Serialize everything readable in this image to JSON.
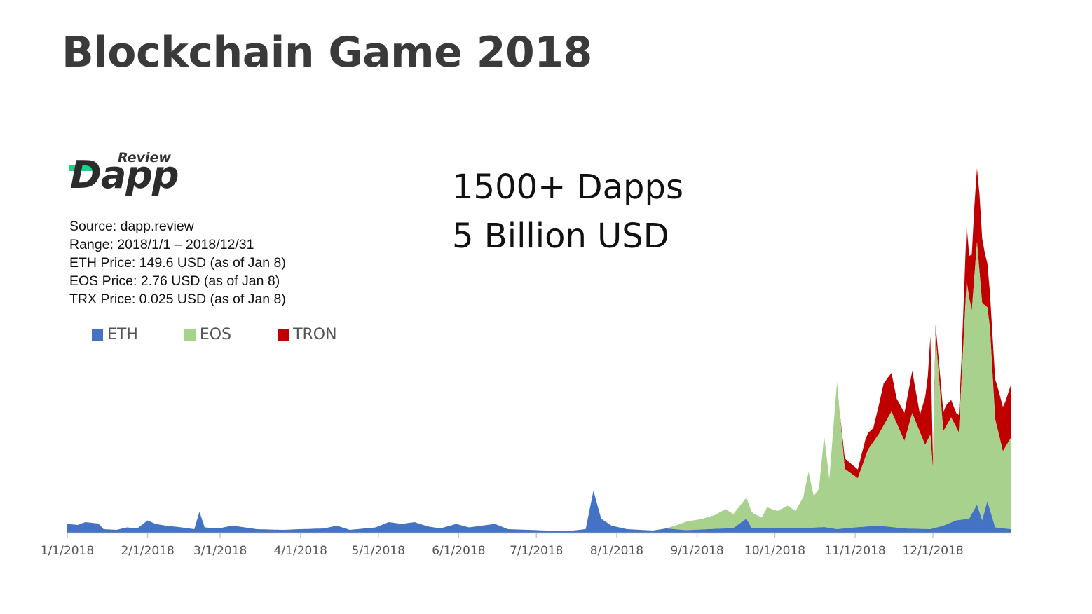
{
  "title": "Blockchain Game 2018",
  "logo": {
    "word": "Dapp",
    "sub": "Review",
    "accent_color": "#1fcf8a"
  },
  "info": [
    "Source: dapp.review",
    "Range: 2018/1/1 – 2018/12/31",
    "ETH Price: 149.6 USD (as of Jan 8)",
    "EOS Price: 2.76 USD (as of Jan 8)",
    "TRX Price: 0.025 USD (as of Jan 8)"
  ],
  "headline": {
    "line1": "1500+ Dapps",
    "line2": "5 Billion USD"
  },
  "legend": [
    {
      "name": "ETH",
      "color": "#4472c4"
    },
    {
      "name": "EOS",
      "color": "#a9d18e"
    },
    {
      "name": "TRON",
      "color": "#c00000"
    }
  ],
  "chart_data": {
    "type": "area",
    "stacked": true,
    "x_ticks": [
      "1/1/2018",
      "2/1/2018",
      "3/1/2018",
      "4/1/2018",
      "5/1/2018",
      "6/1/2018",
      "7/1/2018",
      "8/1/2018",
      "9/1/2018",
      "10/1/2018",
      "11/1/2018",
      "12/1/2018"
    ],
    "x_range": [
      "2018-01-01",
      "2018-12-31"
    ],
    "y_range": [
      0,
      100
    ],
    "y_axis_visible": false,
    "series": [
      {
        "name": "ETH",
        "color": "#4472c4",
        "points": [
          [
            "2018-01-01",
            2.5
          ],
          [
            "2018-01-05",
            2.2
          ],
          [
            "2018-01-08",
            3
          ],
          [
            "2018-01-13",
            2.6
          ],
          [
            "2018-01-15",
            1
          ],
          [
            "2018-01-20",
            0.8
          ],
          [
            "2018-01-24",
            1.5
          ],
          [
            "2018-01-28",
            1.2
          ],
          [
            "2018-02-01",
            3.5
          ],
          [
            "2018-02-04",
            2.5
          ],
          [
            "2018-02-08",
            2
          ],
          [
            "2018-02-13",
            1.6
          ],
          [
            "2018-02-19",
            1
          ],
          [
            "2018-02-21",
            6
          ],
          [
            "2018-02-23",
            1.5
          ],
          [
            "2018-02-28",
            1.2
          ],
          [
            "2018-03-06",
            2
          ],
          [
            "2018-03-15",
            1
          ],
          [
            "2018-03-25",
            0.8
          ],
          [
            "2018-04-01",
            1
          ],
          [
            "2018-04-10",
            1.2
          ],
          [
            "2018-04-15",
            2
          ],
          [
            "2018-04-20",
            0.8
          ],
          [
            "2018-04-30",
            1.5
          ],
          [
            "2018-05-05",
            3
          ],
          [
            "2018-05-10",
            2.5
          ],
          [
            "2018-05-15",
            3
          ],
          [
            "2018-05-20",
            1.8
          ],
          [
            "2018-05-25",
            1.2
          ],
          [
            "2018-05-31",
            2.5
          ],
          [
            "2018-06-05",
            1.5
          ],
          [
            "2018-06-15",
            2.5
          ],
          [
            "2018-06-20",
            1
          ],
          [
            "2018-06-28",
            0.8
          ],
          [
            "2018-07-05",
            0.6
          ],
          [
            "2018-07-15",
            0.6
          ],
          [
            "2018-07-20",
            1
          ],
          [
            "2018-07-23",
            12
          ],
          [
            "2018-07-26",
            4
          ],
          [
            "2018-07-30",
            2
          ],
          [
            "2018-08-05",
            1
          ],
          [
            "2018-08-15",
            0.6
          ],
          [
            "2018-08-20",
            1.2
          ],
          [
            "2018-08-28",
            0.7
          ],
          [
            "2018-09-05",
            1
          ],
          [
            "2018-09-15",
            1.3
          ],
          [
            "2018-09-20",
            4
          ],
          [
            "2018-09-22",
            1.4
          ],
          [
            "2018-09-30",
            1.2
          ],
          [
            "2018-10-10",
            1.2
          ],
          [
            "2018-10-20",
            1.6
          ],
          [
            "2018-10-25",
            1
          ],
          [
            "2018-11-01",
            1.5
          ],
          [
            "2018-11-10",
            2
          ],
          [
            "2018-11-20",
            1.2
          ],
          [
            "2018-11-30",
            1
          ],
          [
            "2018-12-05",
            2
          ],
          [
            "2018-12-10",
            3.5
          ],
          [
            "2018-12-15",
            4
          ],
          [
            "2018-12-18",
            8
          ],
          [
            "2018-12-20",
            3.5
          ],
          [
            "2018-12-22",
            9
          ],
          [
            "2018-12-25",
            1.5
          ],
          [
            "2018-12-31",
            1
          ]
        ]
      },
      {
        "name": "EOS",
        "color": "#a9d18e",
        "points": [
          [
            "2018-08-20",
            0
          ],
          [
            "2018-08-25",
            1.5
          ],
          [
            "2018-08-28",
            2.5
          ],
          [
            "2018-09-03",
            3
          ],
          [
            "2018-09-08",
            4
          ],
          [
            "2018-09-12",
            5.5
          ],
          [
            "2018-09-15",
            4
          ],
          [
            "2018-09-20",
            6
          ],
          [
            "2018-09-23",
            4
          ],
          [
            "2018-09-26",
            3
          ],
          [
            "2018-09-28",
            6
          ],
          [
            "2018-10-02",
            5
          ],
          [
            "2018-10-06",
            6.5
          ],
          [
            "2018-10-09",
            5
          ],
          [
            "2018-10-12",
            9
          ],
          [
            "2018-10-14",
            16
          ],
          [
            "2018-10-16",
            9
          ],
          [
            "2018-10-18",
            11
          ],
          [
            "2018-10-20",
            26
          ],
          [
            "2018-10-22",
            14
          ],
          [
            "2018-10-25",
            42
          ],
          [
            "2018-10-28",
            17
          ],
          [
            "2018-11-02",
            14
          ],
          [
            "2018-11-06",
            22
          ],
          [
            "2018-11-10",
            26
          ],
          [
            "2018-11-15",
            33
          ],
          [
            "2018-11-20",
            25
          ],
          [
            "2018-11-23",
            33
          ],
          [
            "2018-11-28",
            24
          ],
          [
            "2018-11-30",
            27
          ],
          [
            "2018-12-01",
            17
          ],
          [
            "2018-12-02",
            55
          ],
          [
            "2018-12-05",
            27
          ],
          [
            "2018-12-08",
            30
          ],
          [
            "2018-12-11",
            25
          ],
          [
            "2018-12-14",
            68
          ],
          [
            "2018-12-16",
            58
          ],
          [
            "2018-12-18",
            75
          ],
          [
            "2018-12-20",
            62
          ],
          [
            "2018-12-23",
            52
          ],
          [
            "2018-12-25",
            31
          ],
          [
            "2018-12-28",
            22
          ],
          [
            "2018-12-31",
            26
          ]
        ]
      },
      {
        "name": "TRON",
        "color": "#c00000",
        "points": [
          [
            "2018-10-26",
            0
          ],
          [
            "2018-10-28",
            3
          ],
          [
            "2018-11-02",
            2.5
          ],
          [
            "2018-11-05",
            5
          ],
          [
            "2018-11-08",
            4
          ],
          [
            "2018-11-10",
            8
          ],
          [
            "2018-11-12",
            12
          ],
          [
            "2018-11-15",
            11
          ],
          [
            "2018-11-17",
            7
          ],
          [
            "2018-11-20",
            8
          ],
          [
            "2018-11-23",
            12
          ],
          [
            "2018-11-26",
            5
          ],
          [
            "2018-11-29",
            18
          ],
          [
            "2018-11-30",
            28
          ],
          [
            "2018-12-01",
            2
          ],
          [
            "2018-12-03",
            4
          ],
          [
            "2018-12-06",
            6
          ],
          [
            "2018-12-08",
            5
          ],
          [
            "2018-12-10",
            4
          ],
          [
            "2018-12-12",
            6
          ],
          [
            "2018-12-14",
            16
          ],
          [
            "2018-12-15",
            12
          ],
          [
            "2018-12-17",
            20
          ],
          [
            "2018-12-19",
            22
          ],
          [
            "2018-12-21",
            15
          ],
          [
            "2018-12-23",
            10
          ],
          [
            "2018-12-26",
            12
          ],
          [
            "2018-12-29",
            13
          ],
          [
            "2018-12-31",
            15
          ]
        ]
      }
    ]
  }
}
